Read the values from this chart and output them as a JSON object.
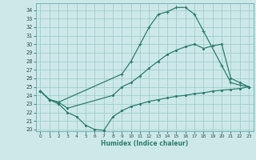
{
  "xlabel": "Humidex (Indice chaleur)",
  "color": "#2e7d6e",
  "bg_color": "#cce8e8",
  "grid_color": "#9ec8c8",
  "ylim": [
    19.8,
    34.8
  ],
  "xlim": [
    -0.5,
    23.5
  ],
  "yticks": [
    20,
    21,
    22,
    23,
    24,
    25,
    26,
    27,
    28,
    29,
    30,
    31,
    32,
    33,
    34
  ],
  "xticks": [
    0,
    1,
    2,
    3,
    4,
    5,
    6,
    7,
    8,
    9,
    10,
    11,
    12,
    13,
    14,
    15,
    16,
    17,
    18,
    19,
    20,
    21,
    22,
    23
  ],
  "top_x": [
    0,
    1,
    2,
    9,
    10,
    11,
    12,
    13,
    14,
    15,
    16,
    17,
    18,
    20,
    21,
    22,
    23
  ],
  "top_y": [
    24.5,
    23.5,
    23.2,
    26.5,
    28.0,
    30.0,
    32.0,
    33.5,
    33.8,
    34.3,
    34.3,
    33.5,
    31.5,
    27.5,
    25.5,
    25.2,
    25.0
  ],
  "mid_x": [
    0,
    1,
    2,
    3,
    8,
    9,
    10,
    11,
    12,
    13,
    14,
    15,
    16,
    17,
    18,
    19,
    20,
    21,
    22,
    23
  ],
  "mid_y": [
    24.5,
    23.5,
    23.2,
    22.5,
    24.0,
    25.0,
    25.5,
    26.3,
    27.2,
    28.0,
    28.8,
    29.3,
    29.7,
    30.0,
    29.5,
    29.8,
    30.0,
    26.0,
    25.5,
    25.0
  ],
  "bot_x": [
    0,
    1,
    2,
    3,
    4,
    5,
    6,
    7,
    8,
    9,
    10,
    11,
    12,
    13,
    14,
    15,
    16,
    17,
    18,
    19,
    20,
    21,
    22,
    23
  ],
  "bot_y": [
    24.5,
    23.5,
    23.0,
    22.0,
    21.5,
    20.5,
    20.0,
    19.9,
    21.5,
    22.2,
    22.7,
    23.0,
    23.3,
    23.5,
    23.7,
    23.9,
    24.0,
    24.2,
    24.3,
    24.5,
    24.6,
    24.7,
    24.8,
    25.0
  ]
}
